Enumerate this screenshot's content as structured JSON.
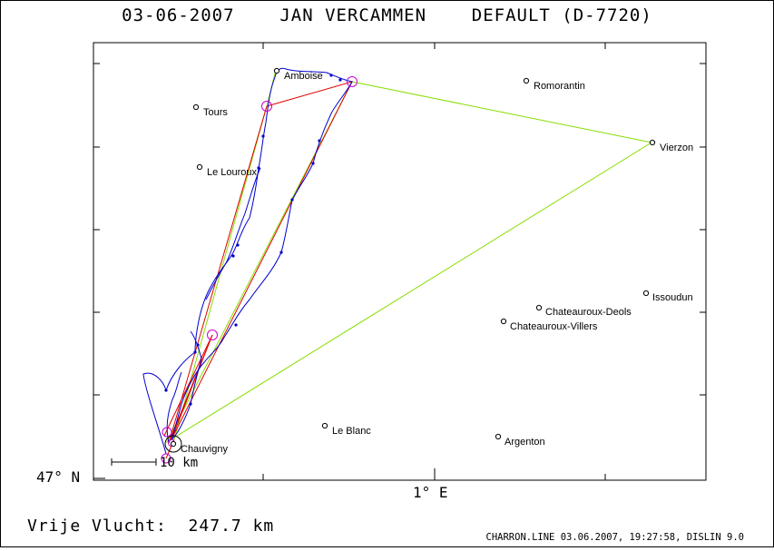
{
  "title": "03-06-2007    JAN VERCAMMEN    DEFAULT (D-7720)",
  "axes": {
    "y_label": "47° N",
    "x_label": "1° E"
  },
  "scale_bar": {
    "label": "10 km"
  },
  "footer": {
    "distance_text": "Vrije Vlucht:  247.7 km",
    "info_text": "CHARRON.LINE 03.06.2007, 19:27:58, DISLIN 9.0"
  },
  "cities": [
    {
      "name": "Amboise"
    },
    {
      "name": "Romorantin"
    },
    {
      "name": "Tours"
    },
    {
      "name": "Vierzon"
    },
    {
      "name": "Le Louroux"
    },
    {
      "name": "Issoudun"
    },
    {
      "name": "Chateauroux-Deols"
    },
    {
      "name": "Chateauroux-Villers"
    },
    {
      "name": "Le Blanc"
    },
    {
      "name": "Chauvigny"
    },
    {
      "name": "Argenton"
    }
  ],
  "colors": {
    "track": "#0000cc",
    "optimized_route": "#e00000",
    "free_flight": "#88dd00",
    "turnpoint": "#cc00cc",
    "frame": "#000000"
  }
}
